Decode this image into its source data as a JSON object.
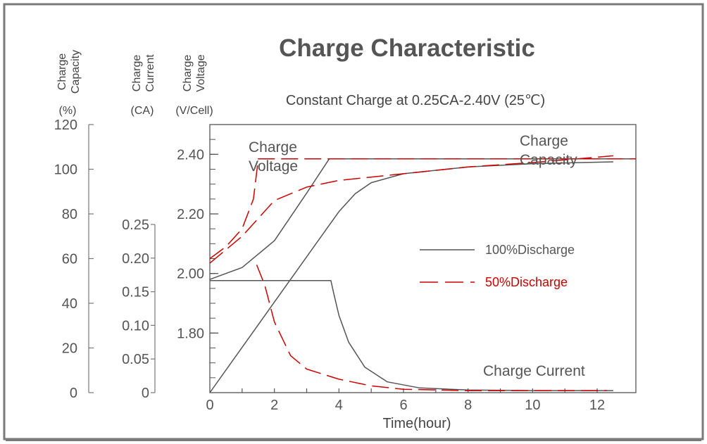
{
  "chart_data": {
    "type": "line",
    "title": "Charge Characteristic",
    "subtitle": "Constant Charge at 0.25CA-2.40V  (25℃)",
    "xlabel": "Time(hour)",
    "x_ticks": [
      "0",
      "2",
      "4",
      "6",
      "8",
      "10",
      "12"
    ],
    "xlim": [
      0,
      13.2
    ],
    "axes": {
      "capacity": {
        "title_line1": "Charge",
        "title_line2": "Capacity",
        "unit": "(%)",
        "ticks": [
          "0",
          "20",
          "40",
          "60",
          "80",
          "100",
          "120"
        ],
        "range": [
          0,
          120
        ]
      },
      "current": {
        "title_line1": "Charge",
        "title_line2": "Current",
        "unit": "(CA)",
        "ticks": [
          "0",
          "0.05",
          "0.10",
          "0.15",
          "0.20",
          "0.25"
        ],
        "range": [
          0,
          0.25
        ]
      },
      "voltage": {
        "title_line1": "Charge",
        "title_line2": "Voltage",
        "unit": "(V/Cell)",
        "ticks": [
          "1.80",
          "2.00",
          "2.20",
          "2.40"
        ],
        "range": [
          1.6,
          2.5
        ]
      }
    },
    "annotations": {
      "voltage_label_line1": "Charge",
      "voltage_label_line2": "Voltage",
      "capacity_label_line1": "Charge",
      "capacity_label_line2": "Capacity",
      "current_label": "Charge Current"
    },
    "legend": {
      "placement": "right",
      "items": [
        {
          "name": "100%Discharge",
          "color": "#555555",
          "dash": "solid"
        },
        {
          "name": "50%Discharge",
          "color": "#cc0000",
          "dash": "dashed"
        }
      ]
    },
    "series": [
      {
        "name": "100%Discharge",
        "quantity": "voltage",
        "axis": "voltage",
        "x": [
          0,
          1.0,
          2.0,
          3.0,
          3.7,
          13.2
        ],
        "y": [
          1.98,
          2.02,
          2.11,
          2.27,
          2.385,
          2.385
        ]
      },
      {
        "name": "100%Discharge",
        "quantity": "current",
        "axis": "current",
        "x": [
          0,
          3.75,
          3.85,
          4.0,
          4.3,
          4.8,
          5.5,
          6.5,
          8.0,
          10.0,
          12.5
        ],
        "y": [
          0.1665,
          0.1665,
          0.145,
          0.115,
          0.075,
          0.038,
          0.016,
          0.007,
          0.004,
          0.003,
          0.003
        ]
      },
      {
        "name": "100%Discharge",
        "quantity": "capacity",
        "axis": "capacity",
        "x": [
          0,
          3.7,
          4.0,
          4.5,
          5.0,
          6.0,
          8.0,
          10.0,
          12.5
        ],
        "y": [
          0,
          75,
          81,
          89,
          94,
          98,
          101,
          102.5,
          103.3
        ]
      },
      {
        "name": "50%Discharge",
        "quantity": "voltage",
        "axis": "voltage",
        "x": [
          0,
          0.5,
          1.0,
          1.35,
          1.5,
          13.2
        ],
        "y": [
          2.05,
          2.09,
          2.15,
          2.25,
          2.385,
          2.385
        ]
      },
      {
        "name": "50%Discharge",
        "quantity": "current",
        "axis": "current",
        "x": [
          1.45,
          1.7,
          2.0,
          2.5,
          3.0,
          4.0,
          5.0,
          6.0,
          8.0,
          10.0,
          12.3
        ],
        "y": [
          0.19,
          0.16,
          0.105,
          0.055,
          0.035,
          0.02,
          0.01,
          0.005,
          0.003,
          0.003,
          0.003
        ]
      },
      {
        "name": "50%Discharge",
        "quantity": "capacity",
        "axis": "capacity",
        "x": [
          0,
          1.0,
          2.0,
          3.0,
          4.0,
          6.0,
          8.0,
          10.0,
          12.5
        ],
        "y": [
          58,
          70,
          86,
          92,
          95,
          98,
          101,
          103,
          106
        ]
      }
    ]
  }
}
